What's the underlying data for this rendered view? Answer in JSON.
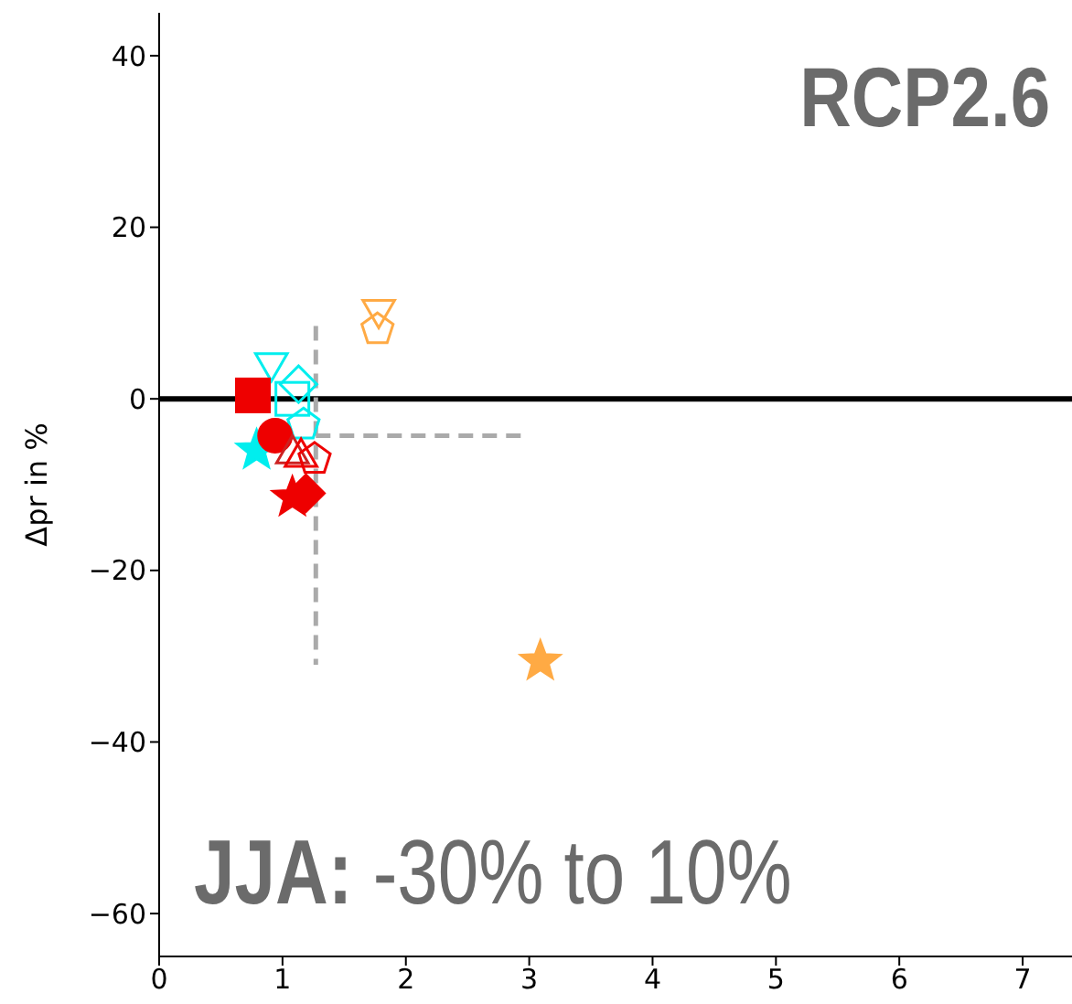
{
  "chart_data": {
    "type": "scatter",
    "ylabel": "Δpr in %",
    "annotations": [
      "RCP2.6",
      "JJA: -30% to 10%"
    ],
    "xlim": [
      0,
      7.4
    ],
    "xticks": [
      0,
      1,
      2,
      3,
      4,
      5,
      6,
      7
    ],
    "ylim": [
      -65,
      45
    ],
    "yticks": [
      -60,
      -40,
      -20,
      0,
      20,
      40
    ],
    "grid": false,
    "legend": false,
    "ref_lines": [
      {
        "axis": "y",
        "value": 0,
        "color": "#000000"
      }
    ],
    "series": [
      {
        "type": "line",
        "color": "#aaaaaa",
        "line_style": "dashed",
        "marker": "none",
        "x": [
          1.27,
          1.27
        ],
        "values": [
          8.5,
          -31
        ]
      },
      {
        "type": "line",
        "color": "#aaaaaa",
        "line_style": "dashed",
        "marker": "none",
        "x": [
          1.27,
          2.97
        ],
        "values": [
          -4.3,
          -4.3
        ]
      },
      {
        "color": "#ffaa44",
        "marker": "triangle_down",
        "x": [
          1.78
        ],
        "values": [
          10.4
        ]
      },
      {
        "color": "#ffaa44",
        "x": [
          1.77
        ],
        "values": [
          8.1
        ]
      },
      {
        "color": "#ffaa44",
        "colors": [
          "#ffaa44"
        ],
        "marker": "star",
        "x": [
          3.09
        ],
        "values": [
          -30.6
        ]
      },
      {
        "color": "#00eeee",
        "marker": "triangle_down",
        "x": [
          0.91
        ],
        "values": [
          4.2
        ]
      },
      {
        "color": "#00eeee",
        "marker": "diamond",
        "x": [
          1.13
        ],
        "values": [
          1.7
        ]
      },
      {
        "color": "#00eeee",
        "marker": "square",
        "x": [
          1.08
        ],
        "values": [
          0
        ]
      },
      {
        "color": "#00eeee",
        "x": [
          1.17
        ],
        "values": [
          -3
        ]
      },
      {
        "color": "#00eeee",
        "colors": [
          "#00eeee"
        ],
        "marker": "star",
        "x": [
          0.79
        ],
        "values": [
          -6
        ]
      },
      {
        "color": "#ee0000",
        "colors": [
          "#ee0000"
        ],
        "marker": "square",
        "x": [
          0.76
        ],
        "values": [
          0.4
        ]
      },
      {
        "color": "#ee0000",
        "colors": [
          "#ee0000"
        ],
        "marker": "circle",
        "x": [
          0.94
        ],
        "values": [
          -4.3
        ]
      },
      {
        "color": "#cc2222",
        "marker": "triangle",
        "x": [
          1.08
        ],
        "values": [
          -6.4
        ]
      },
      {
        "color": "#ee0000",
        "marker": "triangle",
        "x": [
          1.15
        ],
        "values": [
          -6.8
        ]
      },
      {
        "color": "#ee0000",
        "x": [
          1.26
        ],
        "values": [
          -7
        ]
      },
      {
        "color": "#ee0000",
        "colors": [
          "#ee0000"
        ],
        "marker": "star",
        "x": [
          1.08
        ],
        "values": [
          -11.5
        ]
      },
      {
        "color": "#ee0000",
        "colors": [
          "#ee0000"
        ],
        "marker": "diamond",
        "x": [
          1.19
        ],
        "values": [
          -11
        ]
      }
    ]
  }
}
